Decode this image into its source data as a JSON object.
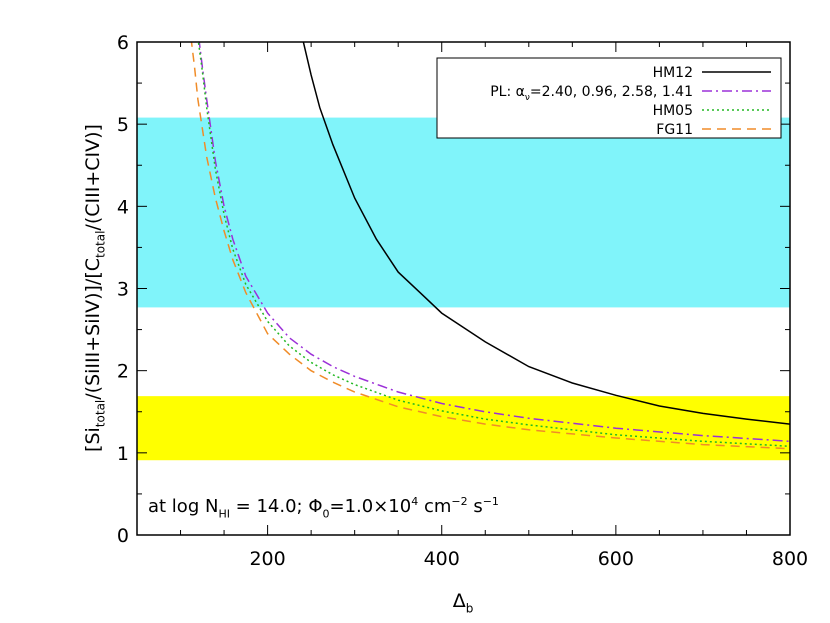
{
  "chart_data": {
    "type": "line",
    "xlabel": "Δ",
    "xlabel_sub": "b",
    "ylabel_parts": [
      {
        "t": "[Si"
      },
      {
        "t": "total",
        "sub": true
      },
      {
        "t": "/(SiIII+SiIV)]/[C"
      },
      {
        "t": "total",
        "sub": true
      },
      {
        "t": "/(CIII+CIV)]"
      }
    ],
    "xlim": [
      50,
      800
    ],
    "ylim": [
      0,
      6
    ],
    "xticks": [
      200,
      400,
      600,
      800
    ],
    "yticks": [
      0,
      1,
      2,
      3,
      4,
      5,
      6
    ],
    "xtick_labels": [
      "200",
      "400",
      "600",
      "800"
    ],
    "ytick_labels": [
      "0",
      "1",
      "2",
      "3",
      "4",
      "5",
      "6"
    ],
    "bands": [
      {
        "name": "cyan-band",
        "y0": 2.77,
        "y1": 5.08,
        "color": "#80F4FA"
      },
      {
        "name": "yellow-band",
        "y0": 0.91,
        "y1": 1.69,
        "color": "#FFFF00"
      }
    ],
    "series": [
      {
        "name": "HM12",
        "color": "#000000",
        "dash": "",
        "x": [
          240,
          250,
          260,
          275,
          300,
          325,
          350,
          375,
          400,
          450,
          500,
          550,
          600,
          650,
          700,
          750,
          800
        ],
        "y": [
          6.05,
          5.6,
          5.2,
          4.75,
          4.1,
          3.6,
          3.2,
          2.95,
          2.7,
          2.35,
          2.05,
          1.85,
          1.7,
          1.57,
          1.48,
          1.41,
          1.35
        ]
      },
      {
        "name": "PL: α",
        "name_sub": "ν",
        "name_rest": "=2.40, 0.96, 2.58, 1.41",
        "color": "#9B30D8",
        "dash": "10,4,2,4",
        "x": [
          121,
          125,
          130,
          140,
          150,
          160,
          175,
          200,
          225,
          250,
          275,
          300,
          350,
          400,
          450,
          500,
          600,
          700,
          800
        ],
        "y": [
          6.05,
          5.7,
          5.3,
          4.55,
          4.0,
          3.6,
          3.15,
          2.7,
          2.4,
          2.2,
          2.05,
          1.93,
          1.74,
          1.6,
          1.5,
          1.42,
          1.3,
          1.21,
          1.14
        ]
      },
      {
        "name": "HM05",
        "color": "#22B822",
        "dash": "2,3",
        "x": [
          120,
          125,
          130,
          140,
          150,
          160,
          175,
          200,
          225,
          250,
          275,
          300,
          350,
          400,
          450,
          500,
          600,
          700,
          800
        ],
        "y": [
          6.05,
          5.65,
          5.2,
          4.45,
          3.9,
          3.48,
          3.05,
          2.6,
          2.3,
          2.1,
          1.95,
          1.83,
          1.64,
          1.51,
          1.41,
          1.34,
          1.22,
          1.14,
          1.08
        ]
      },
      {
        "name": "FG11",
        "color": "#F08C28",
        "dash": "9,6",
        "x": [
          112,
          116,
          120,
          130,
          140,
          150,
          160,
          175,
          200,
          225,
          250,
          275,
          300,
          350,
          400,
          450,
          500,
          600,
          700,
          800
        ],
        "y": [
          6.05,
          5.7,
          5.3,
          4.6,
          4.1,
          3.7,
          3.35,
          2.95,
          2.45,
          2.2,
          2.0,
          1.86,
          1.74,
          1.56,
          1.44,
          1.35,
          1.28,
          1.18,
          1.1,
          1.05
        ]
      }
    ],
    "legend_placement": "top-right",
    "annotation": [
      {
        "t": "at log N"
      },
      {
        "t": "HI",
        "sub": true
      },
      {
        "t": " = 14.0; Φ"
      },
      {
        "t": "0",
        "sub": true
      },
      {
        "t": "=1.0×10"
      },
      {
        "t": "4",
        "sup": true
      },
      {
        "t": " cm"
      },
      {
        "t": "−2",
        "sup": true
      },
      {
        "t": " s"
      },
      {
        "t": "−1",
        "sup": true
      }
    ],
    "grid": false
  }
}
